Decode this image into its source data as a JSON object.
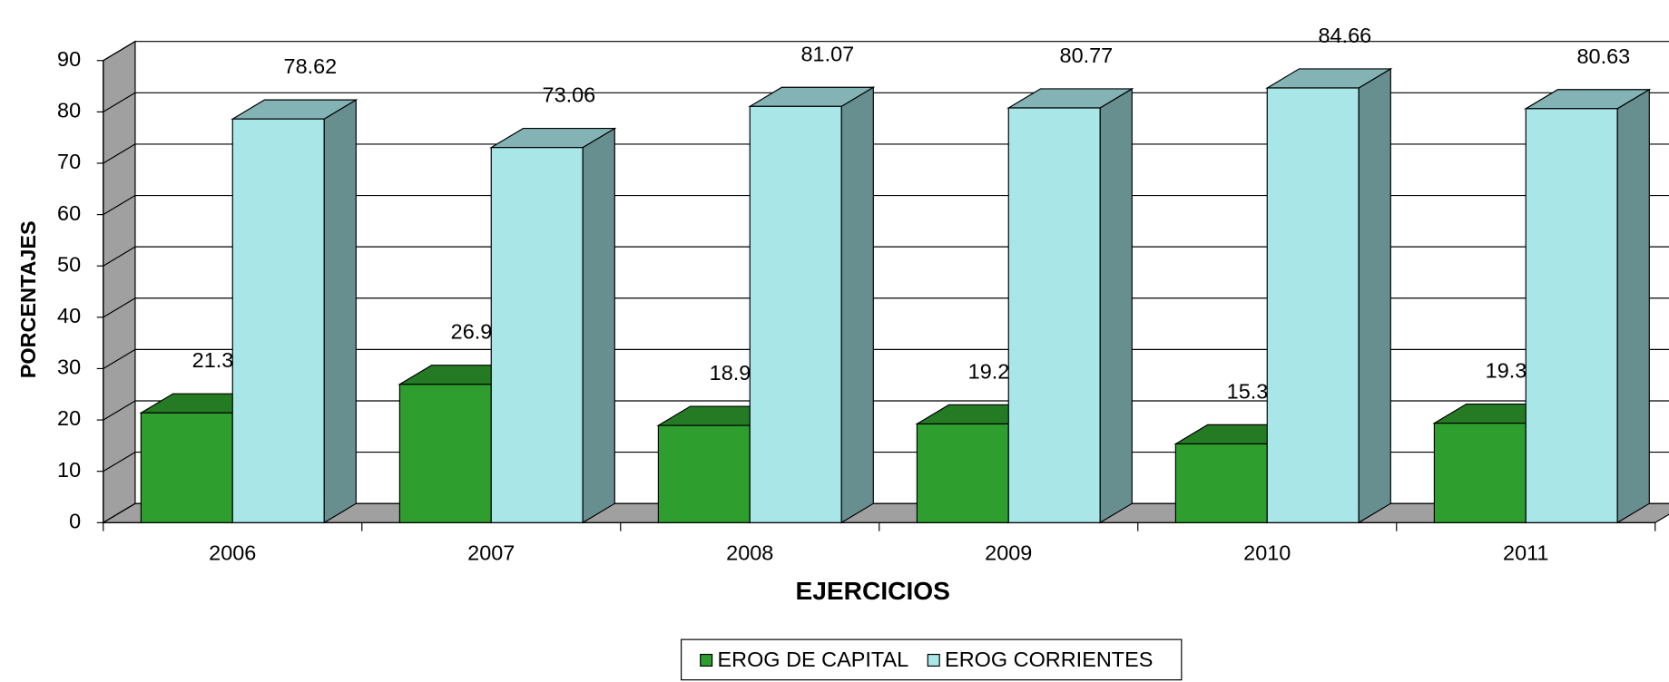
{
  "chart_data": {
    "type": "bar3d",
    "x_label": "EJERCICIOS",
    "y_label": "PORCENTAJES",
    "categories": [
      "2006",
      "2007",
      "2008",
      "2009",
      "2010",
      "2011"
    ],
    "series": [
      {
        "name": "EROG DE CAPITAL",
        "color": "#2e9e2e",
        "values": [
          21.38,
          26.94,
          18.93,
          19.23,
          15.34,
          19.37
        ]
      },
      {
        "name": "EROG CORRIENTES",
        "color": "#a8e6e8",
        "values": [
          78.62,
          73.06,
          81.07,
          80.77,
          84.66,
          80.63
        ]
      }
    ],
    "ylim": [
      0,
      90
    ],
    "yticks": [
      0,
      10,
      20,
      30,
      40,
      50,
      60,
      70,
      80,
      90
    ],
    "grid": true,
    "legend": "bottom"
  }
}
